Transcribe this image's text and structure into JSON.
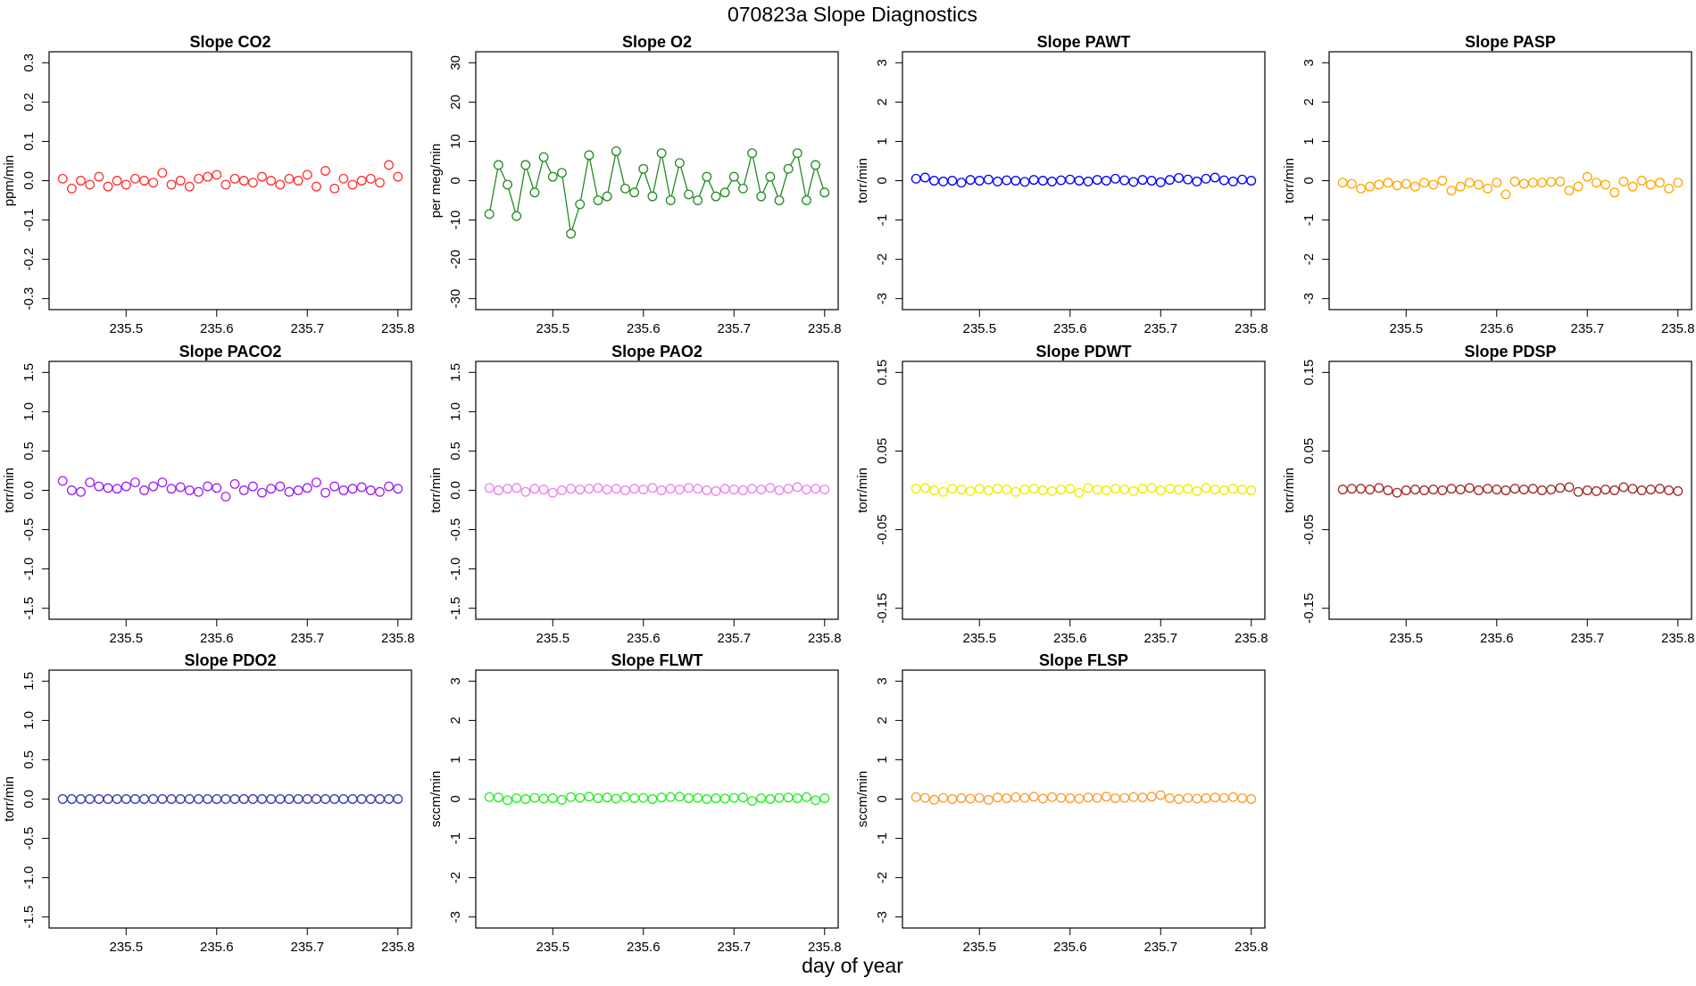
{
  "title": "070823a   Slope Diagnostics",
  "xlabel": "day of year",
  "chart_data": [
    {
      "type": "scatter",
      "title": "Slope CO2",
      "ylabel": "ppm/min",
      "color": "#ff3030",
      "x": [
        235.43,
        235.44,
        235.45,
        235.46,
        235.47,
        235.48,
        235.49,
        235.5,
        235.51,
        235.52,
        235.53,
        235.54,
        235.55,
        235.56,
        235.57,
        235.58,
        235.59,
        235.6,
        235.61,
        235.62,
        235.63,
        235.64,
        235.65,
        235.66,
        235.67,
        235.68,
        235.69,
        235.7,
        235.71,
        235.72,
        235.73,
        235.74,
        235.75,
        235.76,
        235.77,
        235.78,
        235.79,
        235.8
      ],
      "values": [
        0.005,
        -0.02,
        0.0,
        -0.01,
        0.01,
        -0.015,
        0.0,
        -0.01,
        0.005,
        0.0,
        -0.005,
        0.02,
        -0.01,
        0.0,
        -0.015,
        0.005,
        0.01,
        0.015,
        -0.01,
        0.005,
        0.0,
        -0.005,
        0.01,
        0.0,
        -0.01,
        0.005,
        0.0,
        0.015,
        -0.015,
        0.025,
        -0.02,
        0.005,
        -0.01,
        0.0,
        0.005,
        -0.005,
        0.04,
        0.01
      ],
      "xlim": [
        235.415,
        235.815
      ],
      "xticks": [
        235.5,
        235.6,
        235.7,
        235.8
      ],
      "ylim": [
        -0.328,
        0.328
      ],
      "yticks": [
        -0.3,
        -0.2,
        -0.1,
        {
          "value": 0,
          "label": "0.0"
        },
        0.1,
        0.2,
        0.3
      ]
    },
    {
      "type": "scatter",
      "title": "Slope O2",
      "ylabel": "per meg/min",
      "color": "#228b22",
      "line": true,
      "x": [
        235.43,
        235.44,
        235.45,
        235.46,
        235.47,
        235.48,
        235.49,
        235.5,
        235.51,
        235.52,
        235.53,
        235.54,
        235.55,
        235.56,
        235.57,
        235.58,
        235.59,
        235.6,
        235.61,
        235.62,
        235.63,
        235.64,
        235.65,
        235.66,
        235.67,
        235.68,
        235.69,
        235.7,
        235.71,
        235.72,
        235.73,
        235.74,
        235.75,
        235.76,
        235.77,
        235.78,
        235.79,
        235.8
      ],
      "values": [
        -8.5,
        4,
        -1,
        -9,
        4,
        -3,
        6,
        1,
        2,
        -13.5,
        -6,
        6.5,
        -5,
        -4,
        7.5,
        -2,
        -3,
        3,
        -4,
        7,
        -5,
        4.5,
        -3.5,
        -5,
        1,
        -4,
        -3,
        1,
        -2,
        7,
        -4,
        1,
        -5,
        3,
        7,
        -5,
        4,
        -3
      ],
      "xlim": [
        235.415,
        235.815
      ],
      "xticks": [
        235.5,
        235.6,
        235.7,
        235.8
      ],
      "ylim": [
        -32.8,
        32.8
      ],
      "yticks": [
        -30,
        -20,
        -10,
        0,
        10,
        20,
        30
      ]
    },
    {
      "type": "scatter",
      "title": "Slope PAWT",
      "ylabel": "torr/min",
      "color": "#0000ff",
      "x": [
        235.43,
        235.44,
        235.45,
        235.46,
        235.47,
        235.48,
        235.49,
        235.5,
        235.51,
        235.52,
        235.53,
        235.54,
        235.55,
        235.56,
        235.57,
        235.58,
        235.59,
        235.6,
        235.61,
        235.62,
        235.63,
        235.64,
        235.65,
        235.66,
        235.67,
        235.68,
        235.69,
        235.7,
        235.71,
        235.72,
        235.73,
        235.74,
        235.75,
        235.76,
        235.77,
        235.78,
        235.79,
        235.8
      ],
      "values": [
        0.05,
        0.08,
        0.0,
        -0.02,
        0.0,
        -0.05,
        0.02,
        0.0,
        0.03,
        -0.02,
        0.01,
        0.0,
        -0.03,
        0.02,
        0.0,
        -0.02,
        0.01,
        0.03,
        0.0,
        -0.02,
        0.02,
        0.0,
        0.05,
        0.01,
        -0.03,
        0.02,
        0.0,
        -0.04,
        0.02,
        0.07,
        0.03,
        -0.02,
        0.05,
        0.08,
        0.01,
        -0.02,
        0.03,
        0.0
      ],
      "xlim": [
        235.415,
        235.815
      ],
      "xticks": [
        235.5,
        235.6,
        235.7,
        235.8
      ],
      "ylim": [
        -3.28,
        3.28
      ],
      "yticks": [
        -3,
        -2,
        -1,
        0,
        1,
        2,
        3
      ]
    },
    {
      "type": "scatter",
      "title": "Slope PASP",
      "ylabel": "torr/min",
      "color": "#ffa500",
      "x": [
        235.43,
        235.44,
        235.45,
        235.46,
        235.47,
        235.48,
        235.49,
        235.5,
        235.51,
        235.52,
        235.53,
        235.54,
        235.55,
        235.56,
        235.57,
        235.58,
        235.59,
        235.6,
        235.61,
        235.62,
        235.63,
        235.64,
        235.65,
        235.66,
        235.67,
        235.68,
        235.69,
        235.7,
        235.71,
        235.72,
        235.73,
        235.74,
        235.75,
        235.76,
        235.77,
        235.78,
        235.79,
        235.8
      ],
      "values": [
        -0.05,
        -0.08,
        -0.2,
        -0.15,
        -0.1,
        -0.05,
        -0.12,
        -0.08,
        -0.15,
        -0.05,
        -0.1,
        0.0,
        -0.25,
        -0.15,
        -0.05,
        -0.1,
        -0.2,
        -0.05,
        -0.35,
        -0.02,
        -0.08,
        -0.05,
        -0.05,
        -0.03,
        -0.02,
        -0.25,
        -0.15,
        0.1,
        -0.05,
        -0.1,
        -0.3,
        -0.02,
        -0.15,
        0.0,
        -0.1,
        -0.05,
        -0.2,
        -0.05
      ],
      "xlim": [
        235.415,
        235.815
      ],
      "xticks": [
        235.5,
        235.6,
        235.7,
        235.8
      ],
      "ylim": [
        -3.28,
        3.28
      ],
      "yticks": [
        -3,
        -2,
        -1,
        0,
        1,
        2,
        3
      ]
    },
    {
      "type": "scatter",
      "title": "Slope PACO2",
      "ylabel": "torr/min",
      "color": "#a020f0",
      "x": [
        235.43,
        235.44,
        235.45,
        235.46,
        235.47,
        235.48,
        235.49,
        235.5,
        235.51,
        235.52,
        235.53,
        235.54,
        235.55,
        235.56,
        235.57,
        235.58,
        235.59,
        235.6,
        235.61,
        235.62,
        235.63,
        235.64,
        235.65,
        235.66,
        235.67,
        235.68,
        235.69,
        235.7,
        235.71,
        235.72,
        235.73,
        235.74,
        235.75,
        235.76,
        235.77,
        235.78,
        235.79,
        235.8
      ],
      "values": [
        0.12,
        0.0,
        -0.02,
        0.1,
        0.05,
        0.03,
        0.02,
        0.05,
        0.1,
        0.0,
        0.05,
        0.1,
        0.02,
        0.04,
        0.0,
        -0.02,
        0.05,
        0.03,
        -0.08,
        0.08,
        0.0,
        0.05,
        -0.03,
        0.02,
        0.05,
        -0.02,
        0.0,
        0.03,
        0.1,
        -0.03,
        0.05,
        0.0,
        0.02,
        0.04,
        0.0,
        -0.02,
        0.05,
        0.02
      ],
      "xlim": [
        235.415,
        235.815
      ],
      "xticks": [
        235.5,
        235.6,
        235.7,
        235.8
      ],
      "ylim": [
        -1.64,
        1.64
      ],
      "yticks": [
        -1.5,
        {
          "value": -1,
          "label": "-1.0"
        },
        -0.5,
        {
          "value": 0,
          "label": "0.0"
        },
        0.5,
        {
          "value": 1,
          "label": "1.0"
        },
        1.5
      ]
    },
    {
      "type": "scatter",
      "title": "Slope PAO2",
      "ylabel": "torr/min",
      "color": "#ee82ee",
      "x": [
        235.43,
        235.44,
        235.45,
        235.46,
        235.47,
        235.48,
        235.49,
        235.5,
        235.51,
        235.52,
        235.53,
        235.54,
        235.55,
        235.56,
        235.57,
        235.58,
        235.59,
        235.6,
        235.61,
        235.62,
        235.63,
        235.64,
        235.65,
        235.66,
        235.67,
        235.68,
        235.69,
        235.7,
        235.71,
        235.72,
        235.73,
        235.74,
        235.75,
        235.76,
        235.77,
        235.78,
        235.79,
        235.8
      ],
      "values": [
        0.03,
        0.0,
        0.02,
        0.03,
        -0.02,
        0.02,
        0.01,
        -0.03,
        0.0,
        0.02,
        0.01,
        0.02,
        0.03,
        0.01,
        0.02,
        0.0,
        0.02,
        0.01,
        0.03,
        0.0,
        0.02,
        0.01,
        0.03,
        0.02,
        0.0,
        -0.01,
        0.02,
        0.01,
        0.0,
        0.02,
        0.01,
        0.03,
        0.0,
        0.02,
        0.04,
        0.01,
        0.02,
        0.01
      ],
      "xlim": [
        235.415,
        235.815
      ],
      "xticks": [
        235.5,
        235.6,
        235.7,
        235.8
      ],
      "ylim": [
        -1.64,
        1.64
      ],
      "yticks": [
        -1.5,
        {
          "value": -1,
          "label": "-1.0"
        },
        -0.5,
        {
          "value": 0,
          "label": "0.0"
        },
        0.5,
        {
          "value": 1,
          "label": "1.0"
        },
        1.5
      ]
    },
    {
      "type": "scatter",
      "title": "Slope PDWT",
      "ylabel": "torr/min",
      "color": "#eeee00",
      "x": [
        235.43,
        235.44,
        235.45,
        235.46,
        235.47,
        235.48,
        235.49,
        235.5,
        235.51,
        235.52,
        235.53,
        235.54,
        235.55,
        235.56,
        235.57,
        235.58,
        235.59,
        235.6,
        235.61,
        235.62,
        235.63,
        235.64,
        235.65,
        235.66,
        235.67,
        235.68,
        235.69,
        235.7,
        235.71,
        235.72,
        235.73,
        235.74,
        235.75,
        235.76,
        235.77,
        235.78,
        235.79,
        235.8
      ],
      "values": [
        0.002,
        0.003,
        0.0,
        -0.002,
        0.002,
        0.001,
        -0.001,
        0.002,
        0.0,
        0.002,
        0.001,
        -0.002,
        0.001,
        0.002,
        0.0,
        -0.001,
        0.001,
        0.002,
        -0.003,
        0.003,
        0.001,
        0.0,
        0.002,
        0.001,
        -0.001,
        0.002,
        0.003,
        0.0,
        0.002,
        0.001,
        0.002,
        -0.001,
        0.003,
        0.001,
        0.0,
        0.002,
        0.001,
        0.0
      ],
      "xlim": [
        235.415,
        235.815
      ],
      "xticks": [
        235.5,
        235.6,
        235.7,
        235.8
      ],
      "ylim": [
        -0.164,
        0.164
      ],
      "yticks": [
        -0.15,
        -0.05,
        0.05,
        0.15
      ]
    },
    {
      "type": "scatter",
      "title": "Slope PDSP",
      "ylabel": "torr/min",
      "color": "#a52a2a",
      "x": [
        235.43,
        235.44,
        235.45,
        235.46,
        235.47,
        235.48,
        235.49,
        235.5,
        235.51,
        235.52,
        235.53,
        235.54,
        235.55,
        235.56,
        235.57,
        235.58,
        235.59,
        235.6,
        235.61,
        235.62,
        235.63,
        235.64,
        235.65,
        235.66,
        235.67,
        235.68,
        235.69,
        235.7,
        235.71,
        235.72,
        235.73,
        235.74,
        235.75,
        235.76,
        235.77,
        235.78,
        235.79,
        235.8
      ],
      "values": [
        0.001,
        0.002,
        0.002,
        0.001,
        0.003,
        0.0,
        -0.003,
        0.0,
        0.001,
        0.0,
        0.001,
        0.0,
        0.002,
        0.001,
        0.003,
        0.0,
        0.002,
        0.001,
        0.0,
        0.002,
        0.001,
        0.002,
        0.0,
        0.001,
        0.003,
        0.004,
        -0.002,
        0.0,
        -0.001,
        0.001,
        0.0,
        0.004,
        0.002,
        0.0,
        0.001,
        0.002,
        0.0,
        -0.001
      ],
      "xlim": [
        235.415,
        235.815
      ],
      "xticks": [
        235.5,
        235.6,
        235.7,
        235.8
      ],
      "ylim": [
        -0.164,
        0.164
      ],
      "yticks": [
        -0.15,
        -0.05,
        0.05,
        0.15
      ]
    },
    {
      "type": "scatter",
      "title": "Slope PDO2",
      "ylabel": "torr/min",
      "color": "#3a3ab8",
      "x": [
        235.43,
        235.44,
        235.45,
        235.46,
        235.47,
        235.48,
        235.49,
        235.5,
        235.51,
        235.52,
        235.53,
        235.54,
        235.55,
        235.56,
        235.57,
        235.58,
        235.59,
        235.6,
        235.61,
        235.62,
        235.63,
        235.64,
        235.65,
        235.66,
        235.67,
        235.68,
        235.69,
        235.7,
        235.71,
        235.72,
        235.73,
        235.74,
        235.75,
        235.76,
        235.77,
        235.78,
        235.79,
        235.8
      ],
      "values": [
        0,
        0,
        0,
        0,
        0,
        0,
        0,
        0,
        0,
        0,
        0,
        0,
        0,
        0,
        0,
        0,
        0,
        0,
        0,
        0,
        0,
        0,
        0,
        0,
        0,
        0,
        0,
        0,
        0,
        0,
        0,
        0,
        0,
        0,
        0,
        0,
        0,
        0
      ],
      "xlim": [
        235.415,
        235.815
      ],
      "xticks": [
        235.5,
        235.6,
        235.7,
        235.8
      ],
      "ylim": [
        -1.64,
        1.64
      ],
      "yticks": [
        -1.5,
        {
          "value": -1,
          "label": "-1.0"
        },
        -0.5,
        {
          "value": 0,
          "label": "0.0"
        },
        0.5,
        {
          "value": 1,
          "label": "1.0"
        },
        1.5
      ]
    },
    {
      "type": "scatter",
      "title": "Slope FLWT",
      "ylabel": "sccm/min",
      "color": "#22ee22",
      "x": [
        235.43,
        235.44,
        235.45,
        235.46,
        235.47,
        235.48,
        235.49,
        235.5,
        235.51,
        235.52,
        235.53,
        235.54,
        235.55,
        235.56,
        235.57,
        235.58,
        235.59,
        235.6,
        235.61,
        235.62,
        235.63,
        235.64,
        235.65,
        235.66,
        235.67,
        235.68,
        235.69,
        235.7,
        235.71,
        235.72,
        235.73,
        235.74,
        235.75,
        235.76,
        235.77,
        235.78,
        235.79,
        235.8
      ],
      "values": [
        0.05,
        0.04,
        -0.03,
        0.02,
        0.0,
        0.03,
        0.01,
        0.02,
        -0.02,
        0.05,
        0.03,
        0.06,
        0.02,
        0.04,
        0.01,
        0.05,
        0.02,
        0.03,
        0.0,
        0.04,
        0.05,
        0.06,
        0.02,
        0.03,
        0.0,
        0.02,
        0.01,
        0.03,
        0.04,
        -0.05,
        0.02,
        0.0,
        0.03,
        0.04,
        0.02,
        0.05,
        -0.03,
        0.02
      ],
      "xlim": [
        235.415,
        235.815
      ],
      "xticks": [
        235.5,
        235.6,
        235.7,
        235.8
      ],
      "ylim": [
        -3.28,
        3.28
      ],
      "yticks": [
        -3,
        -2,
        -1,
        0,
        1,
        2,
        3
      ]
    },
    {
      "type": "scatter",
      "title": "Slope FLSP",
      "ylabel": "sccm/min",
      "color": "#ff9a30",
      "x": [
        235.43,
        235.44,
        235.45,
        235.46,
        235.47,
        235.48,
        235.49,
        235.5,
        235.51,
        235.52,
        235.53,
        235.54,
        235.55,
        235.56,
        235.57,
        235.58,
        235.59,
        235.6,
        235.61,
        235.62,
        235.63,
        235.64,
        235.65,
        235.66,
        235.67,
        235.68,
        235.69,
        235.7,
        235.71,
        235.72,
        235.73,
        235.74,
        235.75,
        235.76,
        235.77,
        235.78,
        235.79,
        235.8
      ],
      "values": [
        0.05,
        0.03,
        -0.02,
        0.03,
        0.0,
        0.02,
        0.01,
        0.03,
        -0.02,
        0.04,
        0.02,
        0.05,
        0.03,
        0.06,
        0.01,
        0.05,
        0.03,
        0.02,
        0.01,
        0.04,
        0.03,
        0.06,
        0.02,
        0.03,
        0.05,
        0.04,
        0.06,
        0.1,
        0.02,
        0.0,
        0.03,
        0.01,
        0.02,
        0.04,
        0.03,
        0.05,
        0.02,
        0.0
      ],
      "xlim": [
        235.415,
        235.815
      ],
      "xticks": [
        235.5,
        235.6,
        235.7,
        235.8
      ],
      "ylim": [
        -3.28,
        3.28
      ],
      "yticks": [
        -3,
        -2,
        -1,
        0,
        1,
        2,
        3
      ]
    }
  ]
}
